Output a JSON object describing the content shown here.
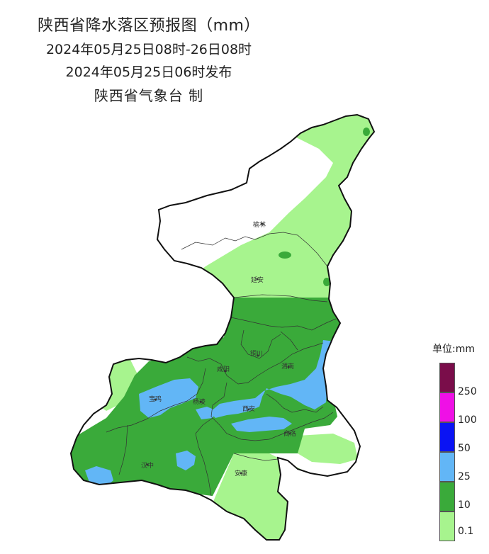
{
  "title": {
    "line1": "陕西省降水落区预报图（mm）",
    "line2": "2024年05月25日08时-26日08时",
    "line3": "2024年05月25日06时发布",
    "line4": "陕西省气象台 制"
  },
  "cities": [
    {
      "key": "yulin",
      "name": "榆林"
    },
    {
      "key": "yanan",
      "name": "延安"
    },
    {
      "key": "tongchuan",
      "name": "铜川"
    },
    {
      "key": "xianyang",
      "name": "咸阳"
    },
    {
      "key": "weinan",
      "name": "渭南"
    },
    {
      "key": "baoji",
      "name": "宝鸡"
    },
    {
      "key": "yangling",
      "name": "杨凌"
    },
    {
      "key": "xian",
      "name": "西安"
    },
    {
      "key": "shangluo",
      "name": "商洛"
    },
    {
      "key": "hanzhong",
      "name": "汉中"
    },
    {
      "key": "ankang",
      "name": "安康"
    }
  ],
  "legend": {
    "title": "单位:mm",
    "bins": [
      {
        "label": "",
        "color": "#7a0d4a"
      },
      {
        "label": "250",
        "color": "#ef10e6"
      },
      {
        "label": "100",
        "color": "#0a13f4"
      },
      {
        "label": "50",
        "color": "#62b6f6"
      },
      {
        "label": "25",
        "color": "#3aaa3a"
      },
      {
        "label": "10",
        "color": "#a7f48e"
      },
      {
        "label": "0.1",
        "color": ""
      }
    ]
  },
  "map_colors": {
    "none": "#ffffff",
    "light": "#a7f48e",
    "mid": "#3aaa3a",
    "heavy": "#62b6f6",
    "border": "#111111"
  }
}
